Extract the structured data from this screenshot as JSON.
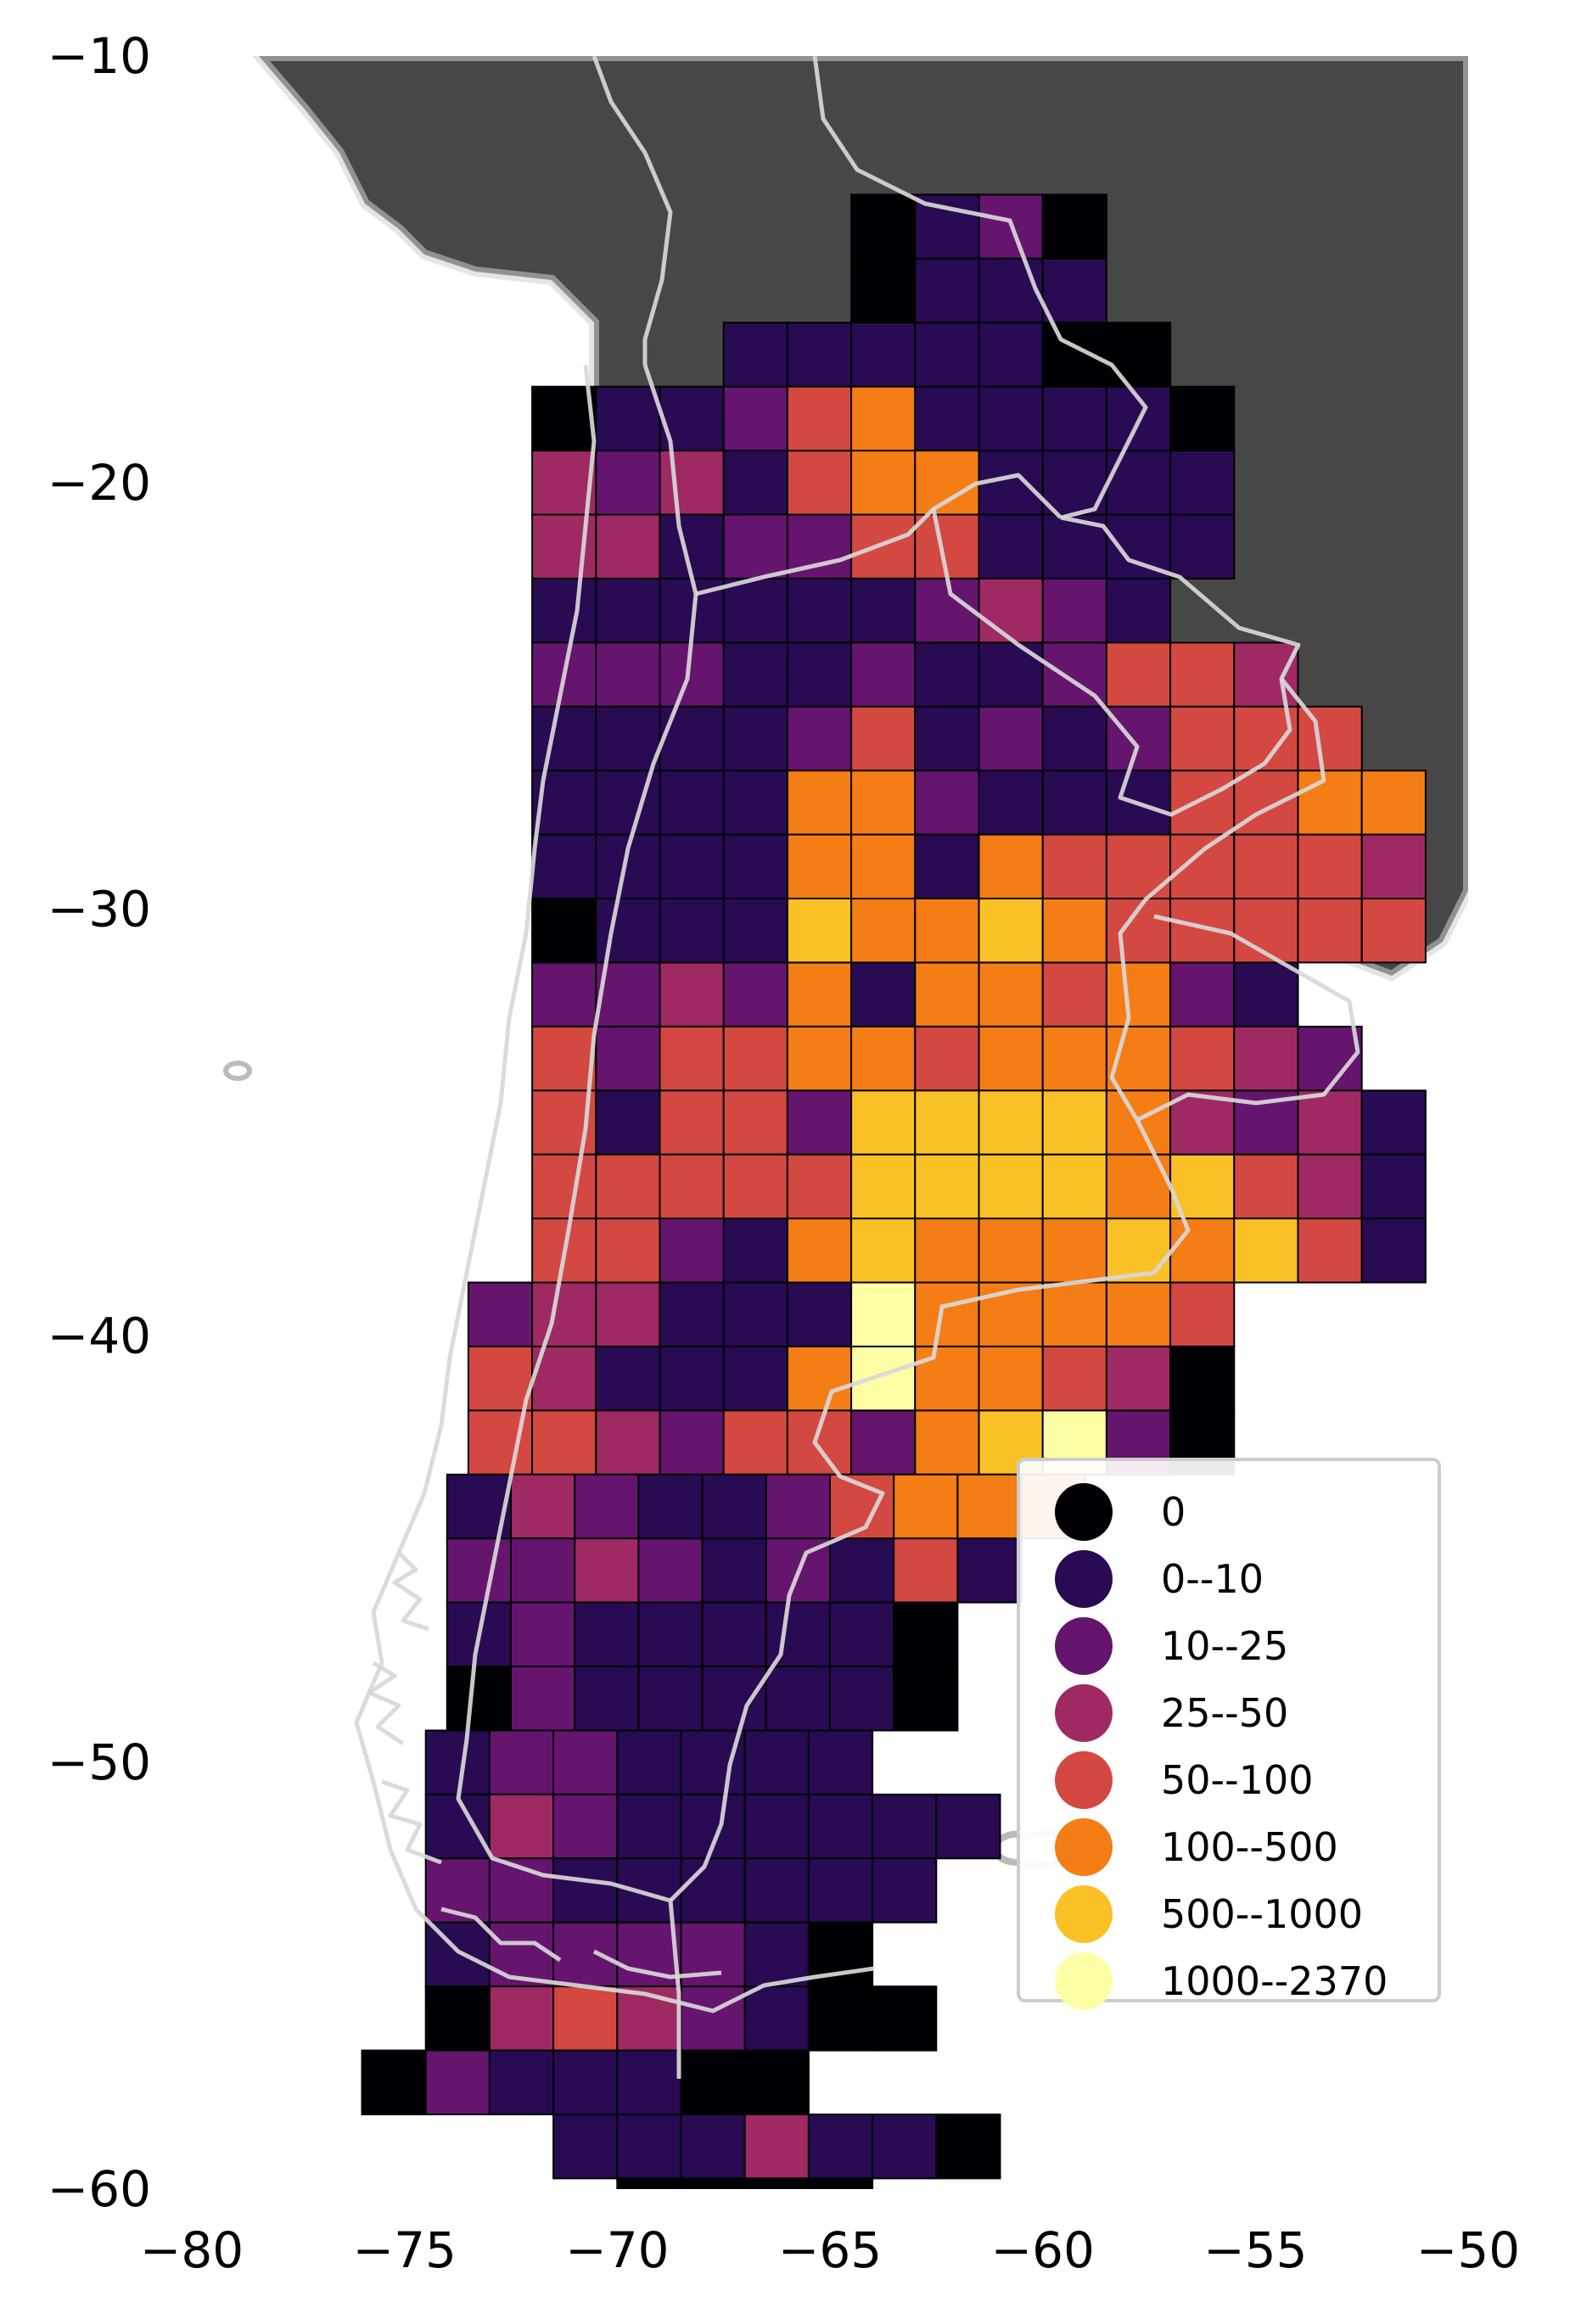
{
  "chart_data": {
    "type": "heatmap",
    "title": "",
    "xlabel": "",
    "ylabel": "",
    "xlim": [
      -80,
      -50
    ],
    "ylim": [
      -60,
      -10
    ],
    "x_ticks": [
      -80,
      -75,
      -70,
      -65,
      -60,
      -55,
      -50
    ],
    "y_ticks": [
      -10,
      -20,
      -30,
      -40,
      -50,
      -60
    ],
    "x_tick_labels": [
      "−80",
      "−75",
      "−70",
      "−65",
      "−60",
      "−55",
      "−50"
    ],
    "y_tick_labels": [
      "−10",
      "−20",
      "−30",
      "−40",
      "−50",
      "−60"
    ],
    "grid": false,
    "legend_position": "lower-right",
    "background_land_color": "#474747",
    "border_color": "#d6d6d6",
    "cell_size_deg": 1.5,
    "legend": [
      {
        "label": "0",
        "color": "#000004"
      },
      {
        "label": "0--10",
        "color": "#280b53"
      },
      {
        "label": "10--25",
        "color": "#65156e"
      },
      {
        "label": "25--50",
        "color": "#9f2a63"
      },
      {
        "label": "50--100",
        "color": "#d44842"
      },
      {
        "label": "100--500",
        "color": "#f57d15"
      },
      {
        "label": "500--1000",
        "color": "#fac127"
      },
      {
        "label": "1000--2370",
        "color": "#fcffa4"
      }
    ],
    "rows": [
      {
        "lat": -14,
        "lon0": -64.5,
        "cls": [
          0,
          1,
          2,
          0
        ]
      },
      {
        "lat": -15.5,
        "lon0": -64.5,
        "cls": [
          0,
          1,
          1,
          1
        ]
      },
      {
        "lat": -17,
        "lon0": -67.5,
        "cls": [
          1,
          1,
          1,
          1,
          1,
          0,
          0
        ]
      },
      {
        "lat": -18.5,
        "lon0": -72,
        "cls": [
          0,
          1,
          1,
          2,
          4,
          5,
          1,
          1,
          1,
          1,
          0
        ]
      },
      {
        "lat": -20,
        "lon0": -72,
        "cls": [
          3,
          2,
          3,
          1,
          4,
          5,
          5,
          1,
          1,
          1,
          1
        ]
      },
      {
        "lat": -21.5,
        "lon0": -72,
        "cls": [
          3,
          3,
          1,
          2,
          2,
          4,
          4,
          1,
          1,
          1,
          1
        ]
      },
      {
        "lat": -23,
        "lon0": -72,
        "cls": [
          1,
          1,
          1,
          1,
          1,
          1,
          2,
          3,
          2,
          1
        ]
      },
      {
        "lat": -24.5,
        "lon0": -72,
        "cls": [
          2,
          2,
          2,
          1,
          1,
          2,
          1,
          1,
          2,
          4,
          4,
          3
        ]
      },
      {
        "lat": -26,
        "lon0": -72,
        "cls": [
          1,
          1,
          1,
          1,
          2,
          4,
          1,
          2,
          1,
          2,
          4,
          4,
          4
        ]
      },
      {
        "lat": -27.5,
        "lon0": -72,
        "cls": [
          1,
          1,
          1,
          1,
          5,
          5,
          2,
          1,
          1,
          1,
          4,
          4,
          5,
          5
        ]
      },
      {
        "lat": -29,
        "lon0": -72,
        "cls": [
          1,
          1,
          1,
          1,
          5,
          5,
          1,
          5,
          4,
          4,
          4,
          4,
          4,
          3
        ]
      },
      {
        "lat": -30.5,
        "lon0": -72,
        "cls": [
          0,
          1,
          1,
          1,
          6,
          5,
          5,
          6,
          5,
          4,
          4,
          4,
          4,
          4
        ]
      },
      {
        "lat": -32,
        "lon0": -72,
        "cls": [
          2,
          2,
          3,
          2,
          5,
          1,
          5,
          5,
          4,
          5,
          2,
          1
        ]
      },
      {
        "lat": -33.5,
        "lon0": -72,
        "cls": [
          4,
          2,
          4,
          4,
          5,
          5,
          4,
          5,
          5,
          5,
          4,
          3,
          2
        ]
      },
      {
        "lat": -35,
        "lon0": -72,
        "cls": [
          4,
          1,
          4,
          4,
          2,
          6,
          6,
          6,
          6,
          5,
          3,
          2,
          3,
          1
        ]
      },
      {
        "lat": -36.5,
        "lon0": -72,
        "cls": [
          4,
          4,
          4,
          4,
          4,
          6,
          6,
          6,
          6,
          5,
          6,
          4,
          3,
          1
        ]
      },
      {
        "lat": -38,
        "lon0": -72,
        "cls": [
          4,
          4,
          2,
          1,
          5,
          6,
          5,
          5,
          5,
          6,
          5,
          6,
          4,
          1
        ]
      },
      {
        "lat": -39.5,
        "lon0": -73.5,
        "cls": [
          2,
          3,
          3,
          1,
          1,
          1,
          7,
          5,
          5,
          5,
          5,
          4
        ]
      },
      {
        "lat": -41,
        "lon0": -73.5,
        "cls": [
          4,
          3,
          1,
          1,
          1,
          5,
          7,
          5,
          5,
          4,
          3,
          0
        ]
      },
      {
        "lat": -42.5,
        "lon0": -73.5,
        "cls": [
          4,
          4,
          3,
          2,
          4,
          4,
          2,
          5,
          6,
          7,
          2,
          0
        ]
      },
      {
        "lat": -44,
        "lon0": -74,
        "cls": [
          1,
          3,
          2,
          1,
          1,
          2,
          4,
          5,
          5,
          5
        ]
      },
      {
        "lat": -45.5,
        "lon0": -74,
        "cls": [
          2,
          2,
          3,
          2,
          1,
          2,
          1,
          4,
          1
        ]
      },
      {
        "lat": -47,
        "lon0": -74,
        "cls": [
          1,
          2,
          1,
          1,
          1,
          1,
          1,
          0
        ]
      },
      {
        "lat": -48.5,
        "lon0": -74,
        "cls": [
          0,
          2,
          1,
          1,
          1,
          1,
          1,
          0
        ]
      },
      {
        "lat": -50,
        "lon0": -74.5,
        "cls": [
          1,
          2,
          2,
          1,
          1,
          1,
          1
        ]
      },
      {
        "lat": -51.5,
        "lon0": -74.5,
        "cls": [
          1,
          3,
          2,
          1,
          1,
          1,
          1,
          1,
          1
        ]
      },
      {
        "lat": -53,
        "lon0": -74.5,
        "cls": [
          2,
          2,
          1,
          1,
          1,
          1,
          1,
          1
        ]
      },
      {
        "lat": -54.5,
        "lon0": -74.5,
        "cls": [
          1,
          2,
          2,
          2,
          2,
          1,
          0
        ]
      },
      {
        "lat": -56,
        "lon0": -74.5,
        "cls": [
          0,
          3,
          4,
          3,
          2,
          1,
          0,
          0
        ]
      },
      {
        "lat": -57.5,
        "lon0": -76,
        "cls": [
          0,
          2,
          1,
          1,
          1,
          0,
          0
        ]
      },
      {
        "lat": -59,
        "lon0": -71.5,
        "cls": [
          1,
          1,
          1,
          3,
          1,
          1,
          0
        ]
      },
      {
        "lat": -60.5,
        "lon0": -70,
        "cls": [
          0,
          0,
          0,
          0
        ]
      }
    ]
  }
}
